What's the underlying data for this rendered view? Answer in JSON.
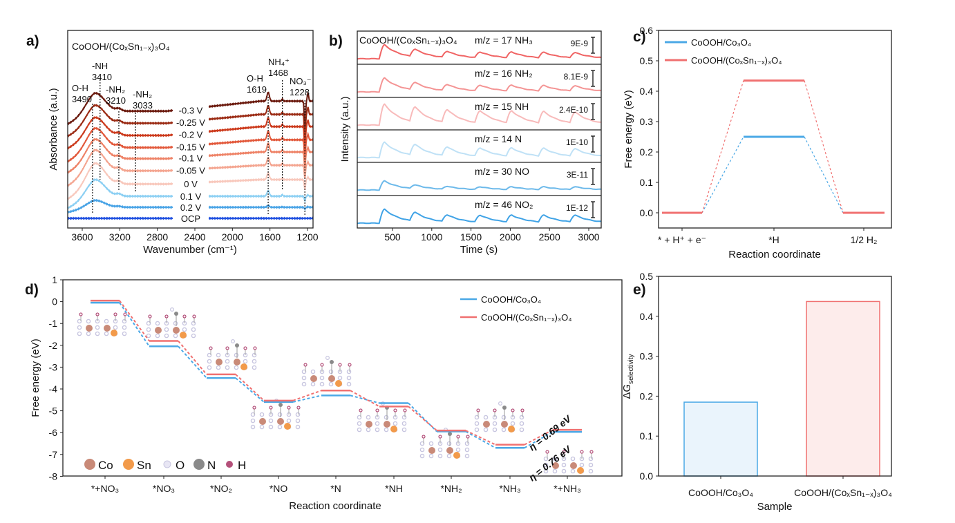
{
  "panel_labels": [
    "a)",
    "b)",
    "c)",
    "d)",
    "e)"
  ],
  "chart_data": [
    {
      "id": "a",
      "type": "line",
      "title": "CoOOH/(CoₓSn₁₋ₓ)₃O₄",
      "xlabel": "Wavenumber (cm⁻¹)",
      "ylabel": "Absorbance (a.u.)",
      "xlim": [
        3755,
        1140
      ],
      "xticks": [
        3600,
        3200,
        2800,
        2400,
        2000,
        1600,
        1200
      ],
      "series": [
        {
          "name": "-0.3 V",
          "offset": 9.7,
          "oh": 1.3,
          "rise": 0.9,
          "p1619": 0.8,
          "dip": 3.0,
          "color": "#6b1a0e"
        },
        {
          "name": "-0.25 V",
          "offset": 8.6,
          "oh": 1.3,
          "rise": 0.8,
          "p1619": 0.8,
          "dip": 2.6,
          "color": "#9b2b14"
        },
        {
          "name": "-0.2 V",
          "offset": 7.5,
          "oh": 1.3,
          "rise": 0.8,
          "p1619": 0.8,
          "dip": 2.4,
          "color": "#cc3a1c"
        },
        {
          "name": "-0.15 V",
          "offset": 6.4,
          "oh": 1.4,
          "rise": 0.7,
          "p1619": 0.8,
          "dip": 2.0,
          "color": "#e2583a"
        },
        {
          "name": "-0.1 V",
          "offset": 5.4,
          "oh": 1.4,
          "rise": 0.6,
          "p1619": 0.8,
          "dip": 1.6,
          "color": "#ee8266"
        },
        {
          "name": "-0.05 V",
          "offset": 4.3,
          "oh": 1.5,
          "rise": 0.5,
          "p1619": 0.7,
          "dip": 1.2,
          "color": "#f4a590"
        },
        {
          "name": "0 V",
          "offset": 3.1,
          "oh": 1.5,
          "rise": 0.4,
          "p1619": 0.6,
          "dip": 0.9,
          "color": "#f8c8bc"
        },
        {
          "name": "0.1 V",
          "offset": 2.0,
          "oh": 1.2,
          "rise": 0.0,
          "p1619": 0.5,
          "dip": 0.4,
          "color": "#8dd0f3"
        },
        {
          "name": "0.2 V",
          "offset": 1.0,
          "oh": 0.5,
          "rise": 0.0,
          "p1619": 0.15,
          "dip": 0.15,
          "color": "#4aa4e6"
        },
        {
          "name": "OCP",
          "offset": 0.0,
          "oh": 0.0,
          "rise": 0.0,
          "p1619": 0.0,
          "dip": 0.0,
          "color": "#1f50e0"
        }
      ],
      "annotations": [
        {
          "label": "O-H",
          "value": "3490",
          "w": 3490
        },
        {
          "label": "-NH",
          "value": "3410",
          "w": 3410
        },
        {
          "label": "-NH₂",
          "value": "3210",
          "w": 3210
        },
        {
          "label": "-NH₂",
          "value": "3033",
          "w": 3033
        },
        {
          "label": "O-H",
          "value": "1619",
          "w": 1619
        },
        {
          "label": "NH₄⁺",
          "value": "1468",
          "w": 1468
        },
        {
          "label": "NO₃⁻",
          "value": "1228",
          "w": 1228
        }
      ]
    },
    {
      "id": "b",
      "type": "line",
      "title": "CoOOH/(CoₓSn₁₋ₓ)₃O₄",
      "xlabel": "Time (s)",
      "ylabel": "Intensity (a.u.)",
      "xlim": [
        50,
        3160
      ],
      "xticks": [
        500,
        1000,
        1500,
        2000,
        2500,
        3000
      ],
      "pulse_starts": [
        330,
        720,
        1130,
        1550,
        1950,
        2360,
        2760
      ],
      "series": [
        {
          "name": "m/z = 17 NH₃",
          "scale": "9E-9",
          "color": "#f06464",
          "amplitudes": [
            1.0,
            0.55,
            0.45,
            0.42,
            0.42,
            0.4,
            0.38
          ]
        },
        {
          "name": "m/z = 16 NH₂",
          "scale": "8.1E-9",
          "color": "#f49494",
          "amplitudes": [
            1.0,
            0.55,
            0.45,
            0.42,
            0.42,
            0.4,
            0.38
          ]
        },
        {
          "name": "m/z = 15 NH",
          "scale": "2.4E-10",
          "color": "#f8baba",
          "amplitudes": [
            1.5,
            1.1,
            0.95,
            0.9,
            0.88,
            0.85,
            0.8
          ]
        },
        {
          "name": "m/z = 14 N",
          "scale": "1E-10",
          "color": "#bfe1f6",
          "amplitudes": [
            1.1,
            0.8,
            0.65,
            0.6,
            0.6,
            0.58,
            0.55
          ]
        },
        {
          "name": "m/z = 30 NO",
          "scale": "3E-11",
          "color": "#6cb9ea",
          "amplitudes": [
            0.65,
            0.28,
            0.22,
            0.2,
            0.2,
            0.2,
            0.2
          ]
        },
        {
          "name": "m/z = 46 NO₂",
          "scale": "1E-12",
          "color": "#40a3e6",
          "amplitudes": [
            1.0,
            0.65,
            0.5,
            0.5,
            0.5,
            0.5,
            0.5
          ]
        }
      ]
    },
    {
      "id": "c",
      "type": "line",
      "xlabel": "Reaction coordinate",
      "ylabel": "Free energy (eV)",
      "ylim": [
        -0.05,
        0.6
      ],
      "yticks": [
        0.0,
        0.1,
        0.2,
        0.3,
        0.4,
        0.5,
        0.6
      ],
      "categories": [
        "* + H⁺ + e⁻",
        "*H",
        "1/2 H₂"
      ],
      "legend_position": "top-left",
      "series": [
        {
          "name": "CoOOH/Co₃O₄",
          "color": "#4aa8e6",
          "values": [
            0.0,
            0.25,
            0.0
          ]
        },
        {
          "name": "CoOOH/(CoₓSn₁₋ₓ)₃O₄",
          "color": "#f07070",
          "values": [
            0.0,
            0.435,
            0.0
          ]
        }
      ]
    },
    {
      "id": "d",
      "type": "line",
      "xlabel": "Reaction coordinate",
      "ylabel": "Free energy (eV)",
      "ylim": [
        -8,
        1
      ],
      "yticks": [
        1,
        0,
        -1,
        -2,
        -3,
        -4,
        -5,
        -6,
        -7,
        -8
      ],
      "categories": [
        "*+NO₃",
        "*NO₃",
        "*NO₂",
        "*NO",
        "*N",
        "*NH",
        "*NH₂",
        "*NH₃",
        "*+NH₃"
      ],
      "legend_position": "top-right",
      "series": [
        {
          "name": "CoOOH/Co₃O₄",
          "color": "#4aa8e6",
          "values": [
            0.0,
            -2.0,
            -3.45,
            -4.55,
            -4.25,
            -4.6,
            -5.9,
            -6.65,
            -5.92
          ]
        },
        {
          "name": "CoOOH/(CoₓSn₁₋ₓ)₃O₄",
          "color": "#f07070",
          "values": [
            0.0,
            -1.85,
            -3.38,
            -4.58,
            -4.12,
            -4.85,
            -5.95,
            -6.6,
            -5.92
          ]
        }
      ],
      "annotations": [
        {
          "text": "η = 0.69 eV",
          "color": "#f07070"
        },
        {
          "text": "η = 0.76 eV",
          "color": "#4aa8e6"
        }
      ],
      "atom_legend": [
        {
          "label": "Co",
          "color": "#c98a78"
        },
        {
          "label": "Sn",
          "color": "#f29a4a"
        },
        {
          "label": "O",
          "color": "#c8c6e0"
        },
        {
          "label": "N",
          "color": "#8a8a8a"
        },
        {
          "label": "H",
          "color": "#b4507a"
        }
      ]
    },
    {
      "id": "e",
      "type": "bar",
      "xlabel": "Sample",
      "ylabel": "ΔG",
      "ylabel_sub": "selectivity",
      "ylim": [
        0,
        0.5
      ],
      "yticks": [
        0.0,
        0.1,
        0.2,
        0.3,
        0.4,
        0.5
      ],
      "categories": [
        "CoOOH/Co₃O₄",
        "CoOOH/(CoₓSn₁₋ₓ)₃O₄"
      ],
      "values": [
        0.185,
        0.437
      ],
      "fills": [
        "#eaf4fc",
        "#fdeceb"
      ],
      "strokes": [
        "#4aa8e6",
        "#f07070"
      ]
    }
  ]
}
